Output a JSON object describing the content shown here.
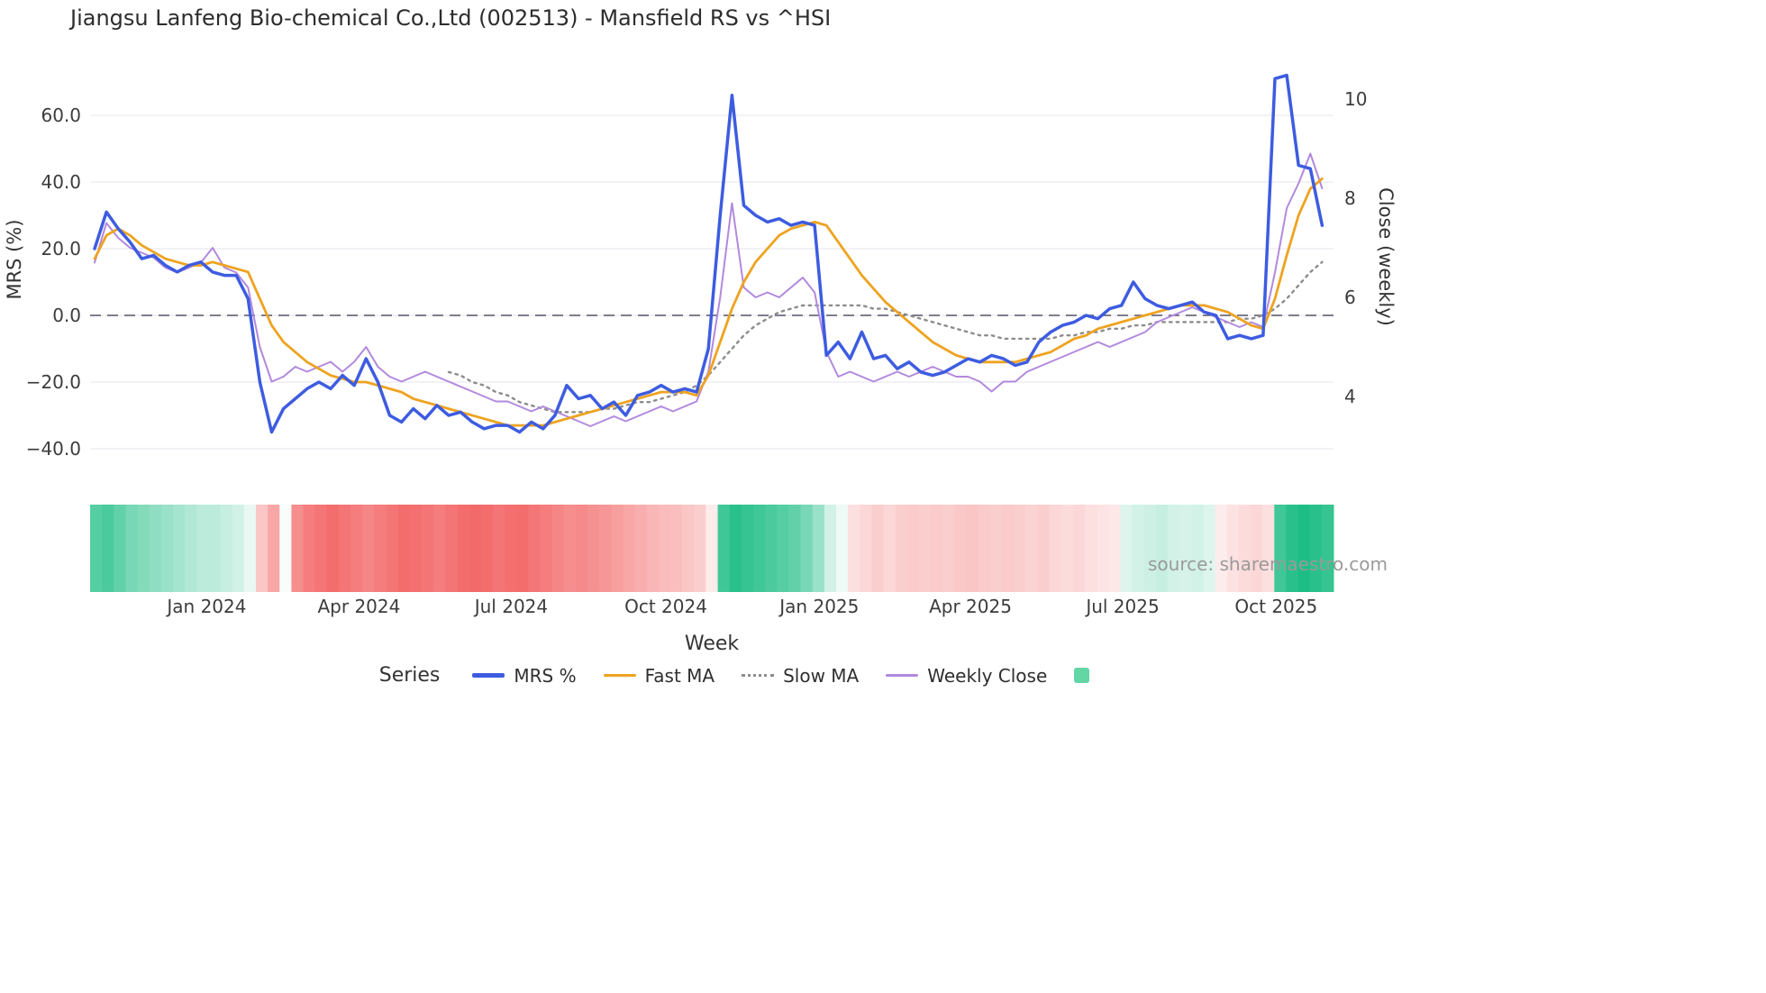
{
  "title": "Jiangsu Lanfeng Bio-chemical Co.,Ltd (002513) - Mansfield RS vs ^HSI",
  "watermark": "source: sharemaestro.com",
  "axes": {
    "left_label": "MRS (%)",
    "right_label": "Close (weekly)",
    "x_label": "Week",
    "left_ticks": [
      60,
      40,
      20,
      0,
      -20,
      -40
    ],
    "right_ticks": [
      10,
      8,
      6,
      4
    ],
    "x_tick_labels": [
      "Jan 2024",
      "Apr 2024",
      "Jul 2024",
      "Oct 2024",
      "Jan 2025",
      "Apr 2025",
      "Jul 2025",
      "Oct 2025"
    ]
  },
  "legend": {
    "title": "Series",
    "items": [
      {
        "label": "MRS %",
        "color": "#3d5ce0",
        "style": "solid"
      },
      {
        "label": "Fast MA",
        "color": "#eea320",
        "style": "solid"
      },
      {
        "label": "Slow MA",
        "color": "#8c8c8c",
        "style": "dotted"
      },
      {
        "label": "Weekly Close",
        "color": "#b289dd",
        "style": "solid"
      }
    ],
    "heat_swatch_color": "#63d6a6"
  },
  "chart_data": {
    "type": "line",
    "x_unit": "week",
    "title": "Jiangsu Lanfeng Bio-chemical Co.,Ltd (002513) - Mansfield RS vs ^HSI",
    "xlabel": "Week",
    "left_axis": {
      "label": "MRS (%)",
      "ticks": [
        60,
        40,
        20,
        0,
        -20,
        -40
      ],
      "range": [
        -52,
        74
      ],
      "zero_line": true
    },
    "right_axis": {
      "label": "Close (weekly)",
      "ticks": [
        10,
        8,
        6,
        4
      ],
      "range": [
        2.1,
        10.6
      ]
    },
    "grid": "horizontal",
    "legend_position": "bottom",
    "x_tick_labels": [
      "Jan 2024",
      "Apr 2024",
      "Jul 2024",
      "Oct 2024",
      "Jan 2025",
      "Apr 2025",
      "Jul 2025",
      "Oct 2025"
    ],
    "x_tick_weeks": [
      9.5,
      22.4,
      35.3,
      48.4,
      61.4,
      74.2,
      87.1,
      100.1
    ],
    "series": [
      {
        "name": "MRS %",
        "axis": "left",
        "color": "#3d5ce0",
        "style": "solid",
        "width": 3.5,
        "values": [
          20,
          31,
          26,
          22,
          17,
          18,
          15,
          13,
          15,
          16,
          13,
          12,
          12,
          5,
          -20,
          -35,
          -28,
          -25,
          -22,
          -20,
          -22,
          -18,
          -21,
          -13,
          -20,
          -30,
          -32,
          -28,
          -31,
          -27,
          -30,
          -29,
          -32,
          -34,
          -33,
          -33,
          -35,
          -32,
          -34,
          -30,
          -21,
          -25,
          -24,
          -28,
          -26,
          -30,
          -24,
          -23,
          -21,
          -23,
          -22,
          -23,
          -10,
          30,
          66,
          33,
          30,
          28,
          29,
          27,
          28,
          27,
          -12,
          -8,
          -13,
          -5,
          -13,
          -12,
          -16,
          -14,
          -17,
          -18,
          -17,
          -15,
          -13,
          -14,
          -12,
          -13,
          -15,
          -14,
          -8,
          -5,
          -3,
          -2,
          0,
          -1,
          2,
          3,
          10,
          5,
          3,
          2,
          3,
          4,
          1,
          0,
          -7,
          -6,
          -7,
          -6,
          71,
          72,
          45,
          44,
          27
        ]
      },
      {
        "name": "Fast MA",
        "axis": "left",
        "color": "#eea320",
        "style": "solid",
        "width": 2.8,
        "values": [
          17,
          24,
          26,
          24,
          21,
          19,
          17,
          16,
          15,
          15,
          16,
          15,
          14,
          13,
          5,
          -3,
          -8,
          -11,
          -14,
          -16,
          -18,
          -19,
          -20,
          -20,
          -21,
          -22,
          -23,
          -25,
          -26,
          -27,
          -28,
          -29,
          -30,
          -31,
          -32,
          -33,
          -33,
          -33,
          -33,
          -32,
          -31,
          -30,
          -29,
          -28,
          -27,
          -26,
          -25,
          -24,
          -23,
          -23,
          -23,
          -24,
          -18,
          -8,
          2,
          10,
          16,
          20,
          24,
          26,
          27,
          28,
          27,
          22,
          17,
          12,
          8,
          4,
          1,
          -2,
          -5,
          -8,
          -10,
          -12,
          -13,
          -14,
          -14,
          -14,
          -14,
          -13,
          -12,
          -11,
          -9,
          -7,
          -6,
          -4,
          -3,
          -2,
          -1,
          0,
          1,
          2,
          3,
          3,
          3,
          2,
          1,
          -1,
          -3,
          -4,
          5,
          18,
          30,
          38,
          41
        ]
      },
      {
        "name": "Slow MA",
        "axis": "left",
        "color": "#8c8c8c",
        "style": "dotted",
        "width": 2.4,
        "values": [
          null,
          null,
          null,
          null,
          null,
          null,
          null,
          null,
          null,
          null,
          null,
          null,
          null,
          null,
          null,
          null,
          null,
          null,
          null,
          null,
          null,
          null,
          null,
          null,
          null,
          null,
          null,
          null,
          null,
          null,
          -17,
          -18,
          -20,
          -21,
          -23,
          -24,
          -26,
          -27,
          -28,
          -29,
          -29,
          -29,
          -29,
          -28,
          -28,
          -27,
          -26,
          -26,
          -25,
          -24,
          -23,
          -21,
          -18,
          -14,
          -10,
          -6,
          -3,
          -1,
          1,
          2,
          3,
          3,
          3,
          3,
          3,
          3,
          2,
          2,
          1,
          0,
          -1,
          -2,
          -3,
          -4,
          -5,
          -6,
          -6,
          -7,
          -7,
          -7,
          -7,
          -7,
          -6,
          -6,
          -5,
          -5,
          -4,
          -4,
          -3,
          -3,
          -2,
          -2,
          -2,
          -2,
          -2,
          -2,
          -2,
          -1,
          -1,
          0,
          2,
          5,
          9,
          13,
          16
        ]
      },
      {
        "name": "Weekly Close",
        "axis": "right",
        "color": "#b289dd",
        "style": "solid",
        "width": 2,
        "values": [
          6.7,
          7.5,
          7.2,
          7.0,
          6.9,
          6.8,
          6.6,
          6.5,
          6.6,
          6.7,
          7.0,
          6.6,
          6.5,
          6.2,
          5.0,
          4.3,
          4.4,
          4.6,
          4.5,
          4.6,
          4.7,
          4.5,
          4.7,
          5.0,
          4.6,
          4.4,
          4.3,
          4.4,
          4.5,
          4.4,
          4.3,
          4.2,
          4.1,
          4.0,
          3.9,
          3.9,
          3.8,
          3.7,
          3.8,
          3.7,
          3.6,
          3.5,
          3.4,
          3.5,
          3.6,
          3.5,
          3.6,
          3.7,
          3.8,
          3.7,
          3.8,
          3.9,
          4.5,
          6.0,
          7.9,
          6.2,
          6.0,
          6.1,
          6.0,
          6.2,
          6.4,
          6.1,
          4.9,
          4.4,
          4.5,
          4.4,
          4.3,
          4.4,
          4.5,
          4.4,
          4.5,
          4.6,
          4.5,
          4.4,
          4.4,
          4.3,
          4.1,
          4.3,
          4.3,
          4.5,
          4.6,
          4.7,
          4.8,
          4.9,
          5.0,
          5.1,
          5.0,
          5.1,
          5.2,
          5.3,
          5.5,
          5.6,
          5.7,
          5.8,
          5.7,
          5.6,
          5.5,
          5.4,
          5.5,
          5.4,
          6.5,
          7.8,
          8.3,
          8.9,
          8.2
        ]
      }
    ],
    "heat_strip": {
      "positive_color": "#1ebd86",
      "negative_color": "#f25d5d",
      "values": [
        0.75,
        0.8,
        0.7,
        0.6,
        0.55,
        0.5,
        0.45,
        0.4,
        0.35,
        0.3,
        0.3,
        0.25,
        0.2,
        0.1,
        -0.35,
        -0.55,
        0.03,
        -0.7,
        -0.8,
        -0.85,
        -0.9,
        -0.85,
        -0.8,
        -0.75,
        -0.8,
        -0.85,
        -0.9,
        -0.88,
        -0.85,
        -0.8,
        -0.85,
        -0.9,
        -0.92,
        -0.9,
        -0.85,
        -0.88,
        -0.9,
        -0.85,
        -0.8,
        -0.75,
        -0.7,
        -0.72,
        -0.68,
        -0.65,
        -0.6,
        -0.55,
        -0.5,
        -0.45,
        -0.42,
        -0.4,
        -0.35,
        -0.3,
        -0.12,
        0.85,
        0.95,
        0.9,
        0.85,
        0.8,
        0.75,
        0.7,
        0.6,
        0.45,
        0.2,
        0.08,
        -0.2,
        -0.25,
        -0.3,
        -0.25,
        -0.3,
        -0.32,
        -0.3,
        -0.33,
        -0.3,
        -0.34,
        -0.36,
        -0.33,
        -0.3,
        -0.33,
        -0.3,
        -0.27,
        -0.3,
        -0.25,
        -0.22,
        -0.25,
        -0.2,
        -0.17,
        -0.15,
        0.15,
        0.2,
        0.22,
        0.25,
        0.2,
        0.18,
        0.2,
        0.15,
        -0.12,
        -0.18,
        -0.22,
        -0.25,
        -0.2,
        0.85,
        0.95,
        1.0,
        0.95,
        0.9
      ]
    }
  }
}
